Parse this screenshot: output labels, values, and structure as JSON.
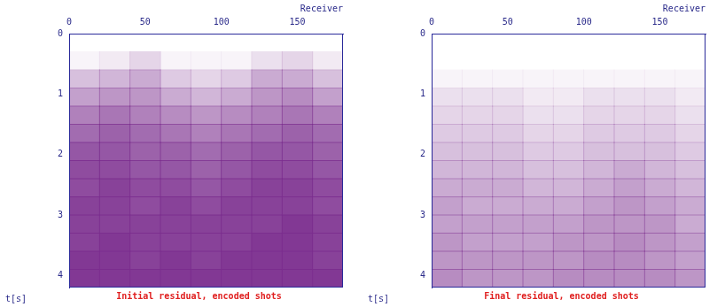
{
  "chart_data": [
    {
      "type": "heatmap",
      "title": "Initial residual, encoded shots",
      "x_label": "Receiver",
      "y_label": "t[s]",
      "xlim": [
        0,
        180
      ],
      "xticks": [
        0,
        50,
        100,
        150
      ],
      "ylim": [
        0,
        4.2
      ],
      "yticks": [
        0,
        1,
        2,
        3,
        4
      ],
      "grid": false,
      "color": "#7b2d8e",
      "x_bins": [
        0,
        20,
        40,
        60,
        80,
        100,
        120,
        140,
        160,
        180
      ],
      "y_bins": [
        0,
        0.3,
        0.6,
        0.9,
        1.2,
        1.5,
        1.8,
        2.1,
        2.4,
        2.7,
        3.0,
        3.3,
        3.6,
        3.9,
        4.2
      ],
      "cells": [
        [
          0,
          0,
          0,
          0,
          0,
          0,
          0,
          0,
          0
        ],
        [
          0.05,
          0.1,
          0.2,
          0.05,
          0.05,
          0.05,
          0.15,
          0.2,
          0.1
        ],
        [
          0.3,
          0.35,
          0.4,
          0.25,
          0.2,
          0.25,
          0.4,
          0.4,
          0.3
        ],
        [
          0.45,
          0.5,
          0.5,
          0.4,
          0.35,
          0.4,
          0.5,
          0.55,
          0.45
        ],
        [
          0.6,
          0.65,
          0.6,
          0.55,
          0.5,
          0.55,
          0.6,
          0.65,
          0.6
        ],
        [
          0.7,
          0.75,
          0.7,
          0.65,
          0.6,
          0.65,
          0.7,
          0.75,
          0.7
        ],
        [
          0.8,
          0.8,
          0.75,
          0.75,
          0.7,
          0.75,
          0.8,
          0.8,
          0.75
        ],
        [
          0.85,
          0.85,
          0.8,
          0.8,
          0.75,
          0.8,
          0.85,
          0.85,
          0.8
        ],
        [
          0.85,
          0.9,
          0.85,
          0.85,
          0.8,
          0.85,
          0.9,
          0.9,
          0.85
        ],
        [
          0.9,
          0.9,
          0.85,
          0.9,
          0.85,
          0.9,
          0.9,
          0.9,
          0.85
        ],
        [
          0.9,
          0.9,
          0.9,
          0.9,
          0.9,
          0.9,
          0.9,
          0.95,
          0.9
        ],
        [
          0.9,
          0.95,
          0.9,
          0.9,
          0.9,
          0.9,
          0.95,
          0.95,
          0.9
        ],
        [
          0.95,
          0.95,
          0.9,
          0.95,
          0.9,
          0.95,
          0.95,
          0.95,
          0.9
        ],
        [
          0.95,
          0.95,
          0.95,
          0.95,
          0.95,
          0.95,
          0.95,
          0.95,
          0.95
        ]
      ]
    },
    {
      "type": "heatmap",
      "title": "Final residual, encoded shots",
      "x_label": "Receiver",
      "y_label": "t[s]",
      "xlim": [
        0,
        180
      ],
      "xticks": [
        0,
        50,
        100,
        150
      ],
      "ylim": [
        0,
        4.2
      ],
      "yticks": [
        0,
        1,
        2,
        3,
        4
      ],
      "grid": false,
      "color": "#7b2d8e",
      "x_bins": [
        0,
        20,
        40,
        60,
        80,
        100,
        120,
        140,
        160,
        180
      ],
      "y_bins": [
        0,
        0.3,
        0.6,
        0.9,
        1.2,
        1.5,
        1.8,
        2.1,
        2.4,
        2.7,
        3.0,
        3.3,
        3.6,
        3.9,
        4.2
      ],
      "cells": [
        [
          0,
          0,
          0,
          0,
          0,
          0,
          0,
          0,
          0
        ],
        [
          0,
          0,
          0,
          0,
          0,
          0,
          0,
          0,
          0
        ],
        [
          0.05,
          0.05,
          0.05,
          0.05,
          0.05,
          0.05,
          0.05,
          0.05,
          0.05
        ],
        [
          0.15,
          0.15,
          0.15,
          0.1,
          0.1,
          0.15,
          0.15,
          0.15,
          0.1
        ],
        [
          0.2,
          0.2,
          0.2,
          0.15,
          0.15,
          0.2,
          0.2,
          0.2,
          0.15
        ],
        [
          0.25,
          0.25,
          0.25,
          0.2,
          0.2,
          0.25,
          0.25,
          0.25,
          0.2
        ],
        [
          0.3,
          0.3,
          0.3,
          0.25,
          0.25,
          0.3,
          0.3,
          0.3,
          0.25
        ],
        [
          0.35,
          0.35,
          0.35,
          0.3,
          0.3,
          0.35,
          0.4,
          0.35,
          0.3
        ],
        [
          0.4,
          0.4,
          0.4,
          0.35,
          0.35,
          0.4,
          0.45,
          0.4,
          0.35
        ],
        [
          0.45,
          0.4,
          0.4,
          0.4,
          0.4,
          0.45,
          0.5,
          0.45,
          0.4
        ],
        [
          0.45,
          0.45,
          0.45,
          0.45,
          0.45,
          0.5,
          0.5,
          0.5,
          0.4
        ],
        [
          0.5,
          0.45,
          0.45,
          0.45,
          0.5,
          0.5,
          0.55,
          0.5,
          0.45
        ],
        [
          0.5,
          0.5,
          0.5,
          0.5,
          0.5,
          0.55,
          0.55,
          0.5,
          0.45
        ],
        [
          0.55,
          0.5,
          0.5,
          0.5,
          0.55,
          0.55,
          0.55,
          0.55,
          0.5
        ]
      ]
    }
  ]
}
